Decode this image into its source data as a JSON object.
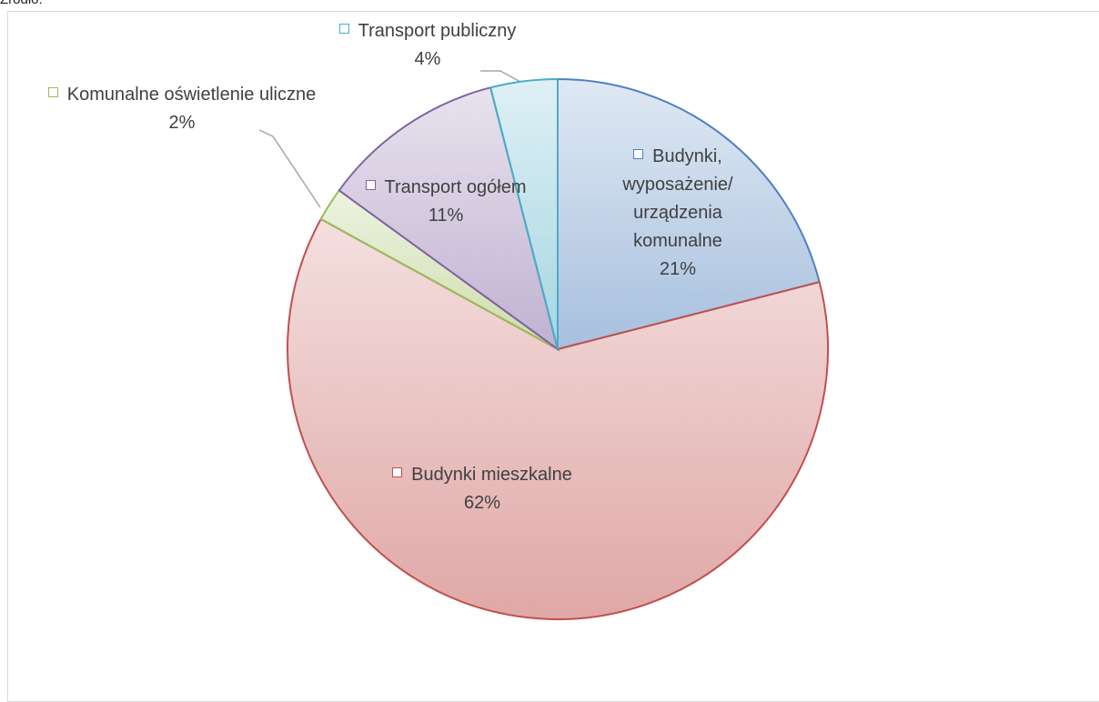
{
  "chart_data": {
    "type": "pie",
    "source_label": "Źródło:",
    "categories": [
      "Budynki, wyposażenie/ urządzenia komunalne",
      "Budynki mieszkalne",
      "Komunalne oświetlenie uliczne",
      "Transport ogółem",
      "Transport publiczny"
    ],
    "values": [
      21,
      62,
      2,
      11,
      4
    ],
    "value_labels": [
      "21%",
      "62%",
      "2%",
      "11%",
      "4%"
    ],
    "colors": [
      "#4f81bd",
      "#c0504d",
      "#9bbb59",
      "#8064a2",
      "#4bacc6"
    ]
  }
}
